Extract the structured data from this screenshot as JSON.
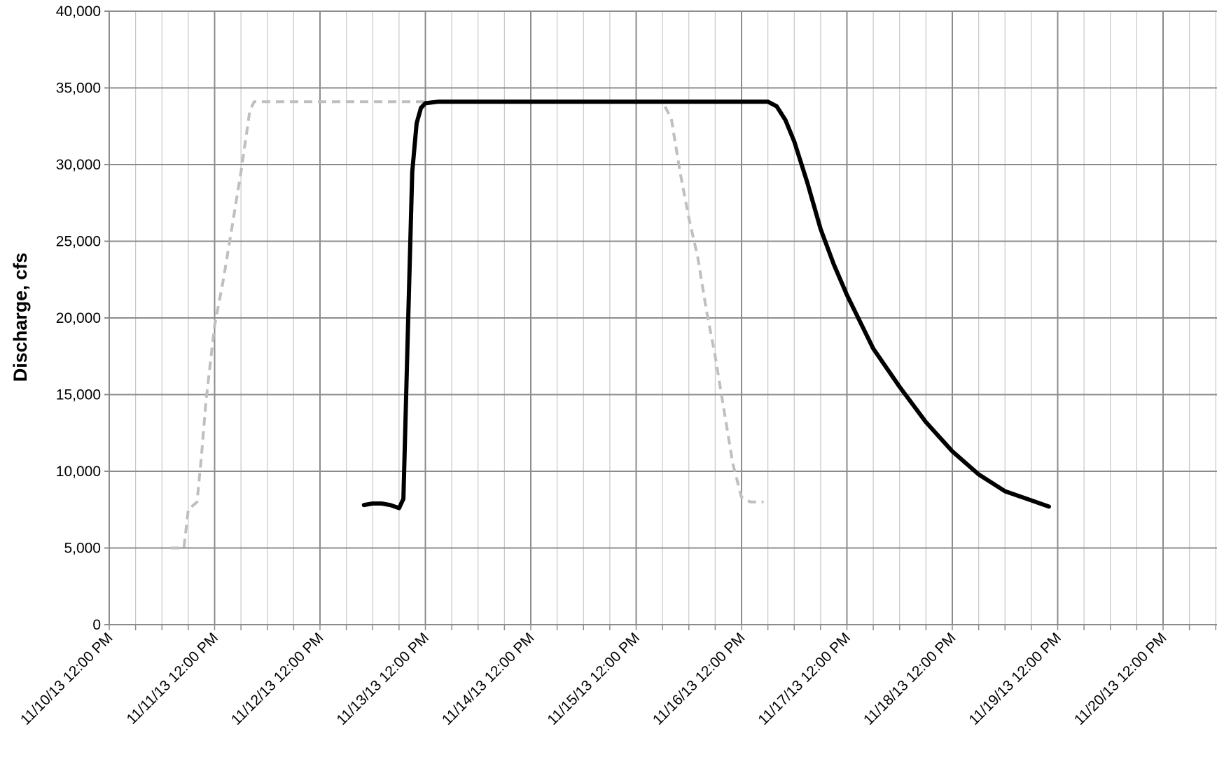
{
  "chart_data": {
    "type": "line",
    "title": "",
    "xlabel": "",
    "ylabel": "Discharge, cfs",
    "x_ticks": [
      "11/10/13 12:00 PM",
      "11/11/13 12:00 PM",
      "11/12/13 12:00 PM",
      "11/13/13 12:00 PM",
      "11/14/13 12:00 PM",
      "11/15/13 12:00 PM",
      "11/16/13 12:00 PM",
      "11/17/13 12:00 PM",
      "11/18/13 12:00 PM",
      "11/19/13 12:00 PM",
      "11/20/13 12:00 PM"
    ],
    "y_ticks": [
      "0",
      "5,000",
      "10,000",
      "15,000",
      "20,000",
      "25,000",
      "30,000",
      "35,000",
      "40,000"
    ],
    "xlim": [
      "11/10/13 12:00 PM",
      "11/20/13 12:00 PM"
    ],
    "ylim": [
      0,
      40000
    ],
    "grid": {
      "major_every_hours": 24,
      "minor_every_hours": 6
    },
    "legend": "none",
    "series": [
      {
        "style": "dashed",
        "color": "#bfbfbf",
        "points": [
          [
            "11/11/13 02:00 AM",
            5000
          ],
          [
            "11/11/13 05:00 AM",
            5000
          ],
          [
            "11/11/13 06:00 AM",
            7500
          ],
          [
            "11/11/13 08:00 AM",
            8000
          ],
          [
            "11/11/13 09:00 AM",
            11000
          ],
          [
            "11/11/13 10:00 AM",
            14500
          ],
          [
            "11/11/13 11:00 AM",
            17000
          ],
          [
            "11/11/13 12:00 PM",
            19500
          ],
          [
            "11/11/13 02:00 PM",
            22500
          ],
          [
            "11/11/13 04:00 PM",
            26000
          ],
          [
            "11/11/13 06:00 PM",
            29500
          ],
          [
            "11/11/13 08:00 PM",
            33500
          ],
          [
            "11/11/13 09:00 PM",
            34100
          ],
          [
            "11/13/13 12:00 PM",
            34100
          ],
          [
            "11/15/13 06:00 PM",
            34100
          ],
          [
            "11/15/13 08:00 PM",
            33000
          ],
          [
            "11/15/13 10:00 PM",
            29500
          ],
          [
            "11/16/13 12:00 AM",
            26500
          ],
          [
            "11/16/13 02:00 AM",
            24000
          ],
          [
            "11/16/13 04:00 AM",
            20500
          ],
          [
            "11/16/13 06:00 AM",
            17500
          ],
          [
            "11/16/13 08:00 AM",
            14000
          ],
          [
            "11/16/13 10:00 AM",
            10500
          ],
          [
            "11/16/13 12:00 PM",
            8300
          ],
          [
            "11/16/13 02:00 PM",
            8000
          ],
          [
            "11/16/13 05:00 PM",
            8000
          ]
        ]
      },
      {
        "style": "solid",
        "color": "#000000",
        "points": [
          [
            "11/12/13 10:00 PM",
            7800
          ],
          [
            "11/13/13 12:00 AM",
            7900
          ],
          [
            "11/13/13 02:00 AM",
            7900
          ],
          [
            "11/13/13 04:00 AM",
            7800
          ],
          [
            "11/13/13 06:00 AM",
            7600
          ],
          [
            "11/13/13 07:00 AM",
            8200
          ],
          [
            "11/13/13 08:00 AM",
            19000
          ],
          [
            "11/13/13 09:00 AM",
            29500
          ],
          [
            "11/13/13 10:00 AM",
            32700
          ],
          [
            "11/13/13 11:00 AM",
            33700
          ],
          [
            "11/13/13 12:00 PM",
            34000
          ],
          [
            "11/13/13 03:00 PM",
            34100
          ],
          [
            "11/16/13 12:00 PM",
            34100
          ],
          [
            "11/16/13 06:00 PM",
            34100
          ],
          [
            "11/16/13 08:00 PM",
            33800
          ],
          [
            "11/16/13 10:00 PM",
            32900
          ],
          [
            "11/17/13 12:00 AM",
            31500
          ],
          [
            "11/17/13 03:00 AM",
            28800
          ],
          [
            "11/17/13 06:00 AM",
            25800
          ],
          [
            "11/17/13 09:00 AM",
            23500
          ],
          [
            "11/17/13 12:00 PM",
            21500
          ],
          [
            "11/17/13 06:00 PM",
            18000
          ],
          [
            "11/18/13 12:00 AM",
            15500
          ],
          [
            "11/18/13 06:00 AM",
            13200
          ],
          [
            "11/18/13 12:00 PM",
            11300
          ],
          [
            "11/18/13 06:00 PM",
            9800
          ],
          [
            "11/19/13 12:00 AM",
            8700
          ],
          [
            "11/19/13 06:00 AM",
            8100
          ],
          [
            "11/19/13 10:00 AM",
            7700
          ]
        ]
      }
    ]
  }
}
